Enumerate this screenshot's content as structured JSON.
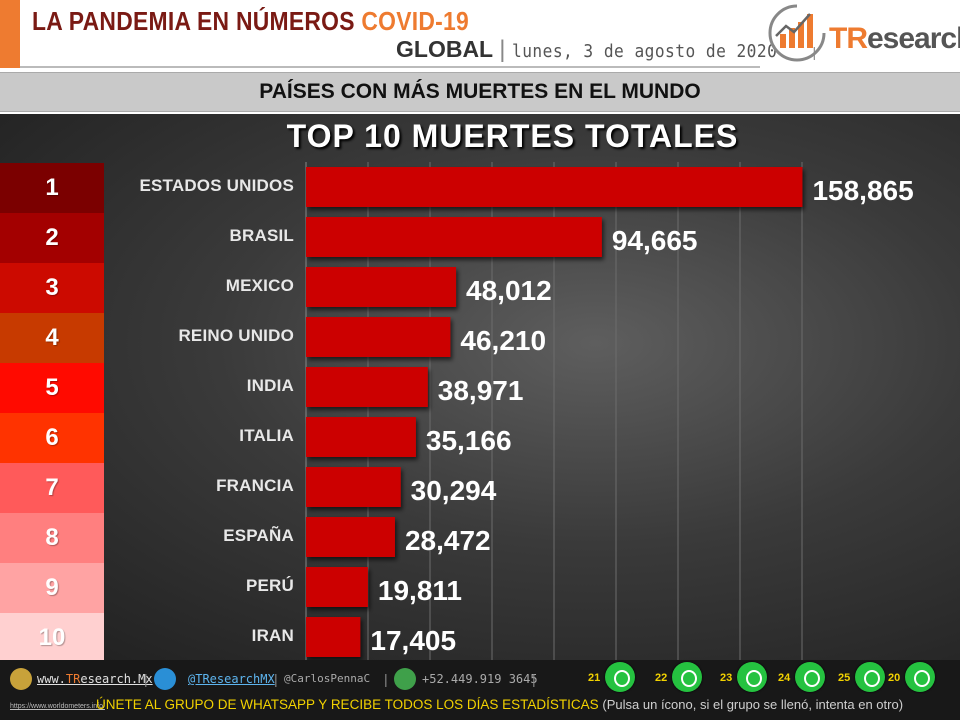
{
  "header": {
    "title_main": "LA PANDEMIA EN NÚMEROS",
    "title_accent": "COVID-19",
    "scope": "GLOBAL",
    "separator": "|",
    "date": "lunes, 3 de agosto de 2020",
    "trailing_sep": "|",
    "logo_text_accent": "TR",
    "logo_text_rest": "esearch"
  },
  "section_title": "PAÍSES CON MÁS MUERTES EN EL MUNDO",
  "chart_data": {
    "type": "bar",
    "orientation": "horizontal",
    "title": "TOP 10 MUERTES TOTALES",
    "categories": [
      "ESTADOS UNIDOS",
      "BRASIL",
      "MEXICO",
      "REINO UNIDO",
      "INDIA",
      "ITALIA",
      "FRANCIA",
      "ESPAÑA",
      "PERÚ",
      "IRAN"
    ],
    "values": [
      158865,
      94665,
      48012,
      46210,
      38971,
      35166,
      30294,
      28472,
      19811,
      17405
    ],
    "value_labels": [
      "158,865",
      "94,665",
      "48,012",
      "46,210",
      "38,971",
      "35,166",
      "30,294",
      "28,472",
      "19,811",
      "17,405"
    ],
    "ranks": [
      "1",
      "2",
      "3",
      "4",
      "5",
      "6",
      "7",
      "8",
      "9",
      "10"
    ],
    "rank_colors": [
      "#7b0000",
      "#a30000",
      "#cc0a00",
      "#c73a00",
      "#ff0a00",
      "#ff3300",
      "#ff5a5a",
      "#ff7f7f",
      "#ffa3a3",
      "#ffd0d0"
    ],
    "bar_color": "#cc0000",
    "xlim": [
      0,
      160000
    ],
    "grid": true,
    "legend": "none"
  },
  "footer": {
    "website_prefix": "www.",
    "website_accent": "TR",
    "website_rest": "esearch.Mx",
    "twitter": "@TResearchMX",
    "handle": "@CarlosPennaC",
    "phone": "+52.449.919 3645",
    "source": "https://www.worldometers.info/",
    "whatsapp_groups": [
      "21",
      "22",
      "23",
      "24",
      "25",
      "20"
    ],
    "join_text": "ÚNETE AL GRUPO DE WHATSAPP Y RECIBE TODOS LOS DÍAS ESTADÍSTICAS",
    "join_note": "(Pulsa un ícono, si el grupo se llenó, intenta en otro)"
  }
}
